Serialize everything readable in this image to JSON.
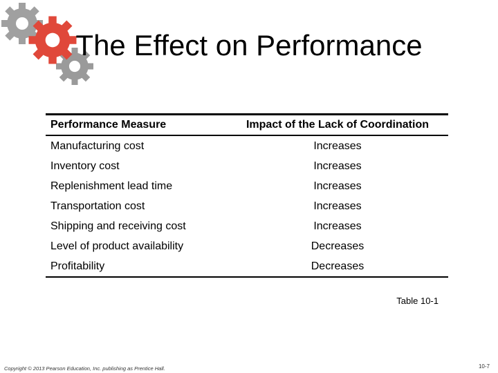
{
  "slide": {
    "title": "The Effect on Performance"
  },
  "table": {
    "headers": [
      "Performance Measure",
      "Impact of the Lack of Coordination"
    ],
    "rows": [
      [
        "Manufacturing cost",
        "Increases"
      ],
      [
        "Inventory cost",
        "Increases"
      ],
      [
        "Replenishment lead time",
        "Increases"
      ],
      [
        "Transportation cost",
        "Increases"
      ],
      [
        "Shipping and receiving cost",
        "Increases"
      ],
      [
        "Level of product availability",
        "Decreases"
      ],
      [
        "Profitability",
        "Decreases"
      ]
    ],
    "caption": "Table 10-1"
  },
  "footer": {
    "copyright": "Copyright © 2013 Pearson Education, Inc. publishing as Prentice Hall.",
    "page_number": "10-7"
  },
  "colors": {
    "gear_gray": "#9a9a9a",
    "gear_red": "#e0483a"
  },
  "icons": [
    "gears-logo-icon"
  ]
}
